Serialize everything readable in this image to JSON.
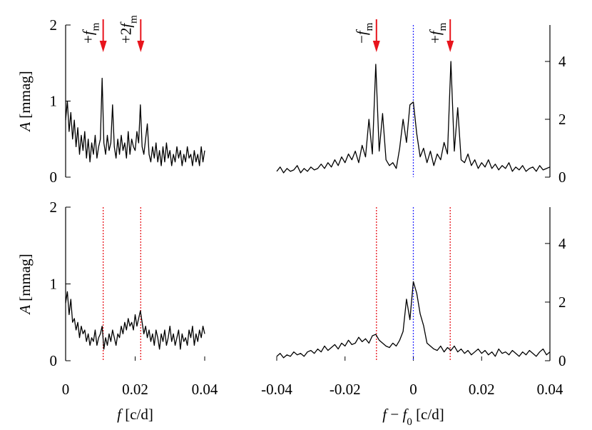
{
  "chart_data": [
    {
      "type": "line",
      "yaxis": "left",
      "xlim": [
        0,
        0.04
      ],
      "ylim": [
        0,
        2
      ],
      "yticks": [
        0,
        1,
        2
      ],
      "ylabel": [
        {
          "text": "A",
          "italic": true
        },
        {
          "text": " [mmag]"
        }
      ],
      "x": [
        0,
        0.0005,
        0.001,
        0.0015,
        0.002,
        0.0025,
        0.003,
        0.0035,
        0.004,
        0.0045,
        0.005,
        0.0055,
        0.006,
        0.0065,
        0.007,
        0.0075,
        0.008,
        0.0085,
        0.009,
        0.0095,
        0.01,
        0.0105,
        0.011,
        0.0115,
        0.012,
        0.0125,
        0.013,
        0.0135,
        0.014,
        0.0145,
        0.015,
        0.0155,
        0.016,
        0.0165,
        0.017,
        0.0175,
        0.018,
        0.0185,
        0.019,
        0.0195,
        0.02,
        0.0205,
        0.021,
        0.0215,
        0.022,
        0.0225,
        0.023,
        0.0235,
        0.024,
        0.0245,
        0.025,
        0.0255,
        0.026,
        0.0265,
        0.027,
        0.0275,
        0.028,
        0.0285,
        0.029,
        0.0295,
        0.03,
        0.0305,
        0.031,
        0.0315,
        0.032,
        0.0325,
        0.033,
        0.0335,
        0.034,
        0.0345,
        0.035,
        0.0355,
        0.036,
        0.0365,
        0.037,
        0.0375,
        0.038,
        0.0385,
        0.039,
        0.0395,
        0.04
      ],
      "series": [
        {
          "color": "#000000",
          "values": [
            0.75,
            1.0,
            0.6,
            0.85,
            0.5,
            0.75,
            0.4,
            0.65,
            0.3,
            0.55,
            0.35,
            0.6,
            0.25,
            0.5,
            0.2,
            0.45,
            0.3,
            0.55,
            0.25,
            0.4,
            0.5,
            1.3,
            0.45,
            0.3,
            0.55,
            0.35,
            0.45,
            0.95,
            0.4,
            0.25,
            0.5,
            0.3,
            0.55,
            0.35,
            0.45,
            0.25,
            0.6,
            0.3,
            0.5,
            0.4,
            0.35,
            0.6,
            0.45,
            0.95,
            0.4,
            0.3,
            0.5,
            0.7,
            0.3,
            0.2,
            0.4,
            0.25,
            0.45,
            0.2,
            0.35,
            0.15,
            0.4,
            0.2,
            0.45,
            0.25,
            0.35,
            0.15,
            0.3,
            0.2,
            0.4,
            0.25,
            0.35,
            0.15,
            0.3,
            0.2,
            0.4,
            0.25,
            0.3,
            0.15,
            0.35,
            0.2,
            0.3,
            0.15,
            0.4,
            0.2,
            0.35
          ]
        }
      ],
      "vlines": [],
      "annotations": [
        {
          "x": 0.0108,
          "color": "#e8141c",
          "parts": [
            {
              "text": "+"
            },
            {
              "text": "f",
              "italic": true
            },
            {
              "text": "m",
              "sub": true
            }
          ]
        },
        {
          "x": 0.0216,
          "color": "#e8141c",
          "parts": [
            {
              "text": "+2"
            },
            {
              "text": "f",
              "italic": true
            },
            {
              "text": "m",
              "sub": true
            }
          ]
        }
      ]
    },
    {
      "type": "line",
      "yaxis": "right",
      "xlim": [
        -0.04,
        0.04
      ],
      "ylim": [
        0,
        5.26
      ],
      "yticks": [
        0,
        2,
        4
      ],
      "x": [
        -0.04,
        -0.039,
        -0.038,
        -0.037,
        -0.036,
        -0.035,
        -0.034,
        -0.033,
        -0.032,
        -0.031,
        -0.03,
        -0.029,
        -0.028,
        -0.027,
        -0.026,
        -0.025,
        -0.024,
        -0.023,
        -0.022,
        -0.021,
        -0.02,
        -0.019,
        -0.018,
        -0.017,
        -0.016,
        -0.015,
        -0.014,
        -0.013,
        -0.012,
        -0.011,
        -0.01,
        -0.009,
        -0.008,
        -0.007,
        -0.006,
        -0.005,
        -0.004,
        -0.003,
        -0.002,
        -0.001,
        0,
        0.001,
        0.002,
        0.003,
        0.004,
        0.005,
        0.006,
        0.007,
        0.008,
        0.009,
        0.01,
        0.011,
        0.012,
        0.013,
        0.014,
        0.015,
        0.016,
        0.017,
        0.018,
        0.019,
        0.02,
        0.021,
        0.022,
        0.023,
        0.024,
        0.025,
        0.026,
        0.027,
        0.028,
        0.029,
        0.03,
        0.031,
        0.032,
        0.033,
        0.034,
        0.035,
        0.036,
        0.037,
        0.038,
        0.039,
        0.04
      ],
      "series": [
        {
          "color": "#000000",
          "values": [
            0.2,
            0.35,
            0.15,
            0.3,
            0.2,
            0.25,
            0.4,
            0.15,
            0.3,
            0.2,
            0.35,
            0.25,
            0.3,
            0.45,
            0.3,
            0.5,
            0.35,
            0.6,
            0.4,
            0.7,
            0.5,
            0.8,
            0.6,
            0.9,
            0.5,
            1.1,
            0.7,
            2.0,
            0.8,
            3.9,
            0.9,
            2.2,
            0.6,
            0.4,
            0.5,
            0.3,
            1.0,
            2.0,
            1.2,
            2.5,
            2.6,
            1.5,
            0.7,
            1.0,
            0.5,
            0.9,
            0.4,
            0.8,
            0.6,
            1.2,
            0.8,
            4.0,
            0.9,
            2.4,
            0.6,
            0.5,
            0.8,
            0.4,
            0.6,
            0.3,
            0.5,
            0.35,
            0.6,
            0.3,
            0.45,
            0.25,
            0.4,
            0.3,
            0.5,
            0.2,
            0.35,
            0.25,
            0.4,
            0.2,
            0.3,
            0.35,
            0.2,
            0.4,
            0.25,
            0.3,
            0.35
          ]
        }
      ],
      "vlines": [
        {
          "x": 0,
          "color": "#2b2bff"
        }
      ],
      "annotations": [
        {
          "x": -0.0108,
          "color": "#e8141c",
          "parts": [
            {
              "text": "−"
            },
            {
              "text": "f",
              "italic": true
            },
            {
              "text": "m",
              "sub": true
            }
          ]
        },
        {
          "x": 0.0108,
          "color": "#e8141c",
          "parts": [
            {
              "text": "+"
            },
            {
              "text": "f",
              "italic": true
            },
            {
              "text": "m",
              "sub": true
            }
          ]
        }
      ]
    },
    {
      "type": "line",
      "yaxis": "left",
      "xlim": [
        0,
        0.04
      ],
      "ylim": [
        0,
        2
      ],
      "yticks": [
        0,
        1,
        2
      ],
      "xticks": [
        0,
        0.02,
        0.04
      ],
      "ylabel": [
        {
          "text": "A",
          "italic": true
        },
        {
          "text": " [mmag]"
        }
      ],
      "xlabel": [
        {
          "text": "f",
          "italic": true
        },
        {
          "text": " [c/d]"
        }
      ],
      "x": [
        0,
        0.0005,
        0.001,
        0.0015,
        0.002,
        0.0025,
        0.003,
        0.0035,
        0.004,
        0.0045,
        0.005,
        0.0055,
        0.006,
        0.0065,
        0.007,
        0.0075,
        0.008,
        0.0085,
        0.009,
        0.0095,
        0.01,
        0.0105,
        0.011,
        0.0115,
        0.012,
        0.0125,
        0.013,
        0.0135,
        0.014,
        0.0145,
        0.015,
        0.0155,
        0.016,
        0.0165,
        0.017,
        0.0175,
        0.018,
        0.0185,
        0.019,
        0.0195,
        0.02,
        0.0205,
        0.021,
        0.0215,
        0.022,
        0.0225,
        0.023,
        0.0235,
        0.024,
        0.0245,
        0.025,
        0.0255,
        0.026,
        0.0265,
        0.027,
        0.0275,
        0.028,
        0.0285,
        0.029,
        0.0295,
        0.03,
        0.0305,
        0.031,
        0.0315,
        0.032,
        0.0325,
        0.033,
        0.0335,
        0.034,
        0.0345,
        0.035,
        0.0355,
        0.036,
        0.0365,
        0.037,
        0.0375,
        0.038,
        0.0385,
        0.039,
        0.0395,
        0.04
      ],
      "series": [
        {
          "color": "#000000",
          "values": [
            0.75,
            0.9,
            0.6,
            0.8,
            0.5,
            0.55,
            0.4,
            0.5,
            0.3,
            0.45,
            0.35,
            0.4,
            0.25,
            0.35,
            0.2,
            0.3,
            0.25,
            0.4,
            0.2,
            0.3,
            0.35,
            0.45,
            0.15,
            0.3,
            0.2,
            0.35,
            0.25,
            0.4,
            0.3,
            0.2,
            0.35,
            0.3,
            0.45,
            0.35,
            0.5,
            0.4,
            0.55,
            0.45,
            0.5,
            0.4,
            0.6,
            0.45,
            0.55,
            0.65,
            0.5,
            0.35,
            0.45,
            0.3,
            0.4,
            0.25,
            0.35,
            0.2,
            0.4,
            0.3,
            0.15,
            0.35,
            0.25,
            0.4,
            0.2,
            0.3,
            0.45,
            0.25,
            0.35,
            0.2,
            0.3,
            0.4,
            0.15,
            0.35,
            0.25,
            0.3,
            0.2,
            0.4,
            0.3,
            0.45,
            0.2,
            0.35,
            0.25,
            0.4,
            0.3,
            0.45,
            0.35
          ]
        }
      ],
      "vlines": [
        {
          "x": 0.0108,
          "color": "#e8141c"
        },
        {
          "x": 0.0216,
          "color": "#e8141c"
        }
      ],
      "annotations": []
    },
    {
      "type": "line",
      "yaxis": "right",
      "xlim": [
        -0.04,
        0.04
      ],
      "ylim": [
        0,
        5.24
      ],
      "yticks": [
        0,
        2,
        4
      ],
      "xticks": [
        -0.04,
        -0.02,
        0,
        0.02,
        0.04
      ],
      "xlabel": [
        {
          "text": "f",
          "italic": true
        },
        {
          "text": " − "
        },
        {
          "text": "f",
          "italic": true
        },
        {
          "text": "0",
          "sub": true
        },
        {
          "text": " [c/d]"
        }
      ],
      "x": [
        -0.04,
        -0.039,
        -0.038,
        -0.037,
        -0.036,
        -0.035,
        -0.034,
        -0.033,
        -0.032,
        -0.031,
        -0.03,
        -0.029,
        -0.028,
        -0.027,
        -0.026,
        -0.025,
        -0.024,
        -0.023,
        -0.022,
        -0.021,
        -0.02,
        -0.019,
        -0.018,
        -0.017,
        -0.016,
        -0.015,
        -0.014,
        -0.013,
        -0.012,
        -0.011,
        -0.01,
        -0.009,
        -0.008,
        -0.007,
        -0.006,
        -0.005,
        -0.004,
        -0.003,
        -0.002,
        -0.001,
        0,
        0.001,
        0.002,
        0.003,
        0.004,
        0.005,
        0.006,
        0.007,
        0.008,
        0.009,
        0.01,
        0.011,
        0.012,
        0.013,
        0.014,
        0.015,
        0.016,
        0.017,
        0.018,
        0.019,
        0.02,
        0.021,
        0.022,
        0.023,
        0.024,
        0.025,
        0.026,
        0.027,
        0.028,
        0.029,
        0.03,
        0.031,
        0.032,
        0.033,
        0.034,
        0.035,
        0.036,
        0.037,
        0.038,
        0.039,
        0.04
      ],
      "series": [
        {
          "color": "#000000",
          "values": [
            0.15,
            0.25,
            0.1,
            0.2,
            0.15,
            0.3,
            0.2,
            0.25,
            0.15,
            0.3,
            0.35,
            0.25,
            0.4,
            0.3,
            0.5,
            0.35,
            0.45,
            0.55,
            0.4,
            0.6,
            0.5,
            0.7,
            0.55,
            0.6,
            0.8,
            0.65,
            0.75,
            0.6,
            0.85,
            0.9,
            0.7,
            0.6,
            0.5,
            0.45,
            0.6,
            0.5,
            0.7,
            1.0,
            2.1,
            1.4,
            2.7,
            2.3,
            1.6,
            1.2,
            0.6,
            0.5,
            0.4,
            0.35,
            0.5,
            0.3,
            0.45,
            0.35,
            0.5,
            0.3,
            0.4,
            0.25,
            0.35,
            0.2,
            0.3,
            0.4,
            0.25,
            0.35,
            0.2,
            0.3,
            0.15,
            0.4,
            0.25,
            0.3,
            0.2,
            0.35,
            0.25,
            0.15,
            0.3,
            0.2,
            0.35,
            0.25,
            0.15,
            0.3,
            0.4,
            0.2,
            0.3
          ]
        }
      ],
      "vlines": [
        {
          "x": -0.0108,
          "color": "#e8141c"
        },
        {
          "x": 0,
          "color": "#2b2bff"
        },
        {
          "x": 0.0108,
          "color": "#e8141c"
        }
      ],
      "annotations": []
    }
  ]
}
